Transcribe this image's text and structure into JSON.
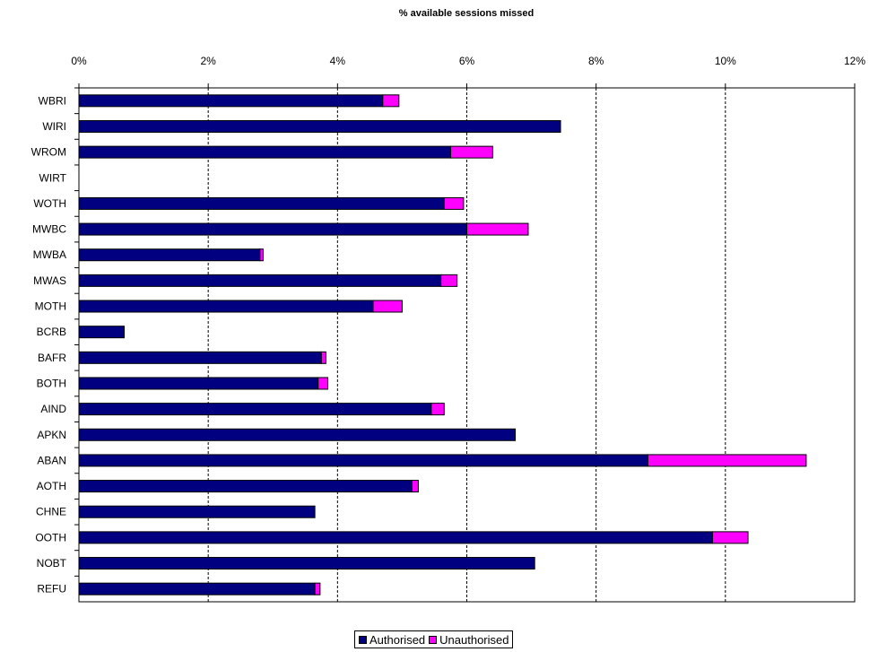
{
  "chart_data": {
    "type": "bar",
    "orientation": "horizontal",
    "stacked": true,
    "title": "% available sessions missed",
    "x_axis_position": "top",
    "xlim": [
      0,
      12
    ],
    "x_ticks": [
      0,
      2,
      4,
      6,
      8,
      10,
      12
    ],
    "x_tick_labels": [
      "0%",
      "2%",
      "4%",
      "6%",
      "8%",
      "10%",
      "12%"
    ],
    "grid": "vertical dashed",
    "legend_position": "bottom-center",
    "categories": [
      "WBRI",
      "WIRI",
      "WROM",
      "WIRT",
      "WOTH",
      "MWBC",
      "MWBA",
      "MWAS",
      "MOTH",
      "BCRB",
      "BAFR",
      "BOTH",
      "AIND",
      "APKN",
      "ABAN",
      "AOTH",
      "CHNE",
      "OOTH",
      "NOBT",
      "REFU"
    ],
    "series": [
      {
        "name": "Authorised",
        "color": "#000080",
        "values": [
          4.7,
          7.45,
          5.75,
          0,
          5.65,
          6.0,
          2.8,
          5.6,
          4.55,
          0.7,
          3.75,
          3.7,
          5.45,
          6.75,
          8.8,
          5.15,
          3.65,
          9.8,
          7.05,
          3.65
        ]
      },
      {
        "name": "Unauthorised",
        "color": "#ff00ff",
        "values": [
          0.25,
          0,
          0.65,
          0,
          0.3,
          0.95,
          0.05,
          0.25,
          0.45,
          0,
          0.07,
          0.15,
          0.2,
          0,
          2.45,
          0.1,
          0,
          0.55,
          0,
          0.08
        ]
      }
    ]
  }
}
